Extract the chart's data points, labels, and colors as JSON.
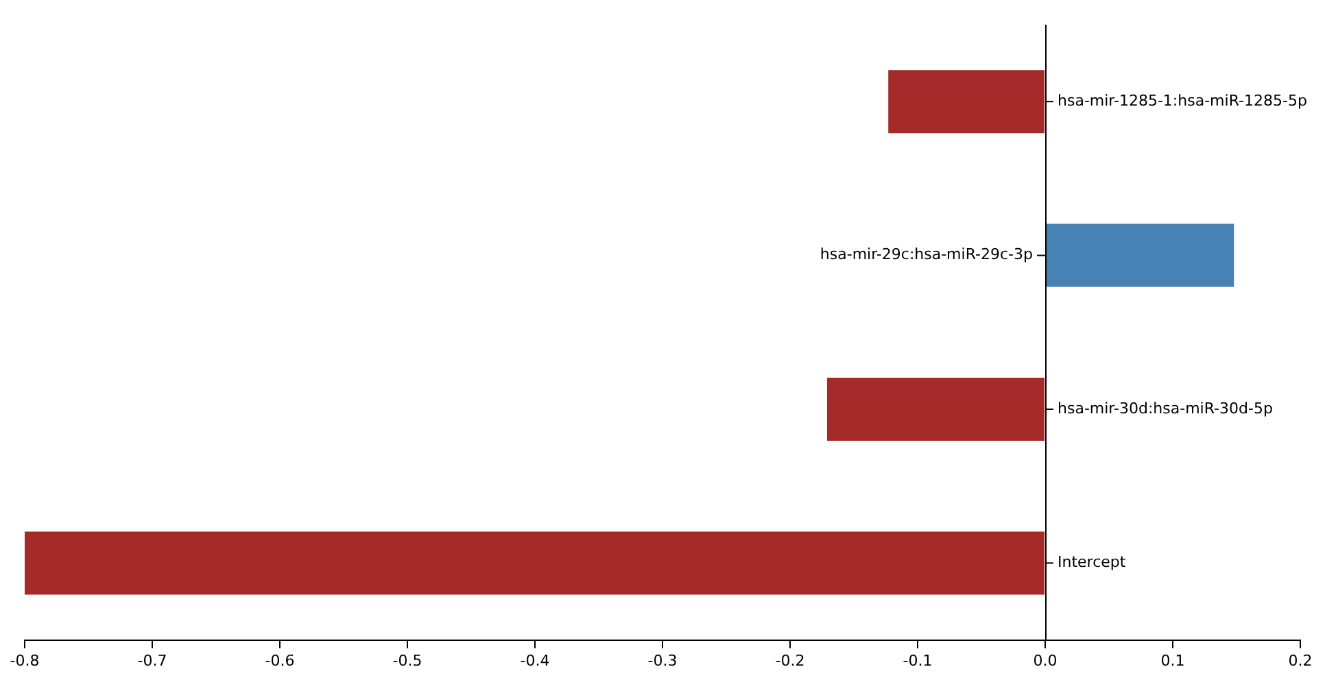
{
  "chart_data": {
    "type": "bar",
    "orientation": "horizontal",
    "categories": [
      "hsa-mir-1285-1:hsa-miR-1285-5p",
      "hsa-mir-29c:hsa-miR-29c-3p",
      "hsa-mir-30d:hsa-miR-30d-5p",
      "Intercept"
    ],
    "values": [
      -0.123,
      0.148,
      -0.171,
      -0.8
    ],
    "colors": [
      "#a52a2a",
      "#4682b4",
      "#a52a2a",
      "#a52a2a"
    ],
    "xlim": [
      -0.8,
      0.2
    ],
    "xticks": [
      -0.8,
      -0.7,
      -0.6,
      -0.5,
      -0.4,
      -0.3,
      -0.2,
      -0.1,
      {
        "value": 0,
        "label": "0.0"
      },
      0.1,
      0.2
    ],
    "grid": false,
    "legend": false
  }
}
